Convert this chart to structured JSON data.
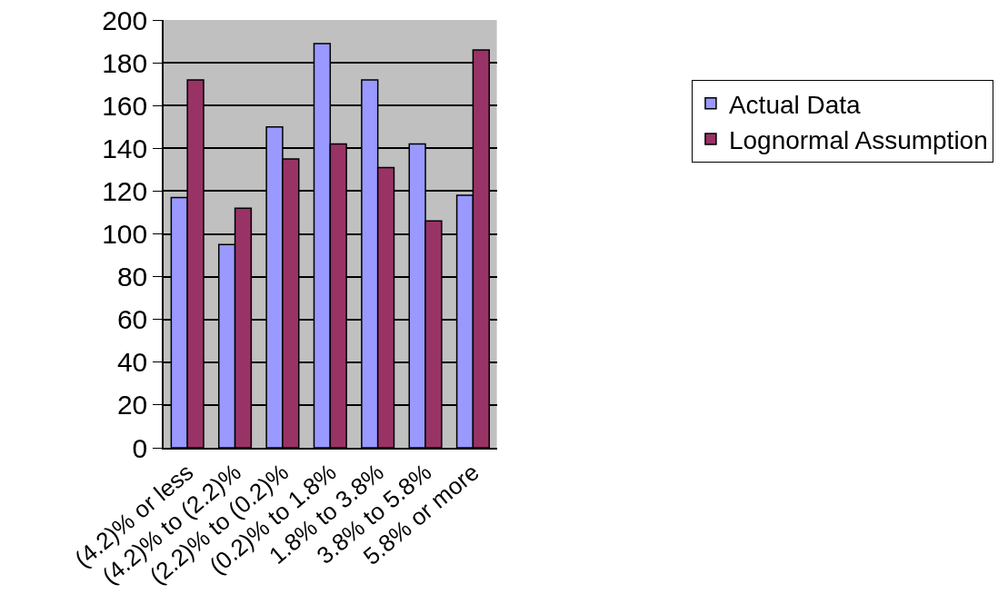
{
  "chart_data": {
    "type": "bar",
    "categories": [
      "(4.2)% or less",
      "(4.2)% to (2.2)%",
      "(2.2)% to (0.2)%",
      "(0.2)% to 1.8%",
      "1.8% to 3.8%",
      "3.8% to 5.8%",
      "5.8% or more"
    ],
    "series": [
      {
        "name": "Actual Data",
        "color": "#9999ff",
        "values": [
          117,
          95,
          150,
          189,
          172,
          142,
          118
        ]
      },
      {
        "name": "Lognormal Assumption",
        "color": "#993366",
        "values": [
          172,
          112,
          135,
          142,
          131,
          106,
          186
        ]
      }
    ],
    "ylim": [
      0,
      200
    ],
    "yticks": [
      0,
      20,
      40,
      60,
      80,
      100,
      120,
      140,
      160,
      180,
      200
    ],
    "grid": "y",
    "legend": "right"
  }
}
